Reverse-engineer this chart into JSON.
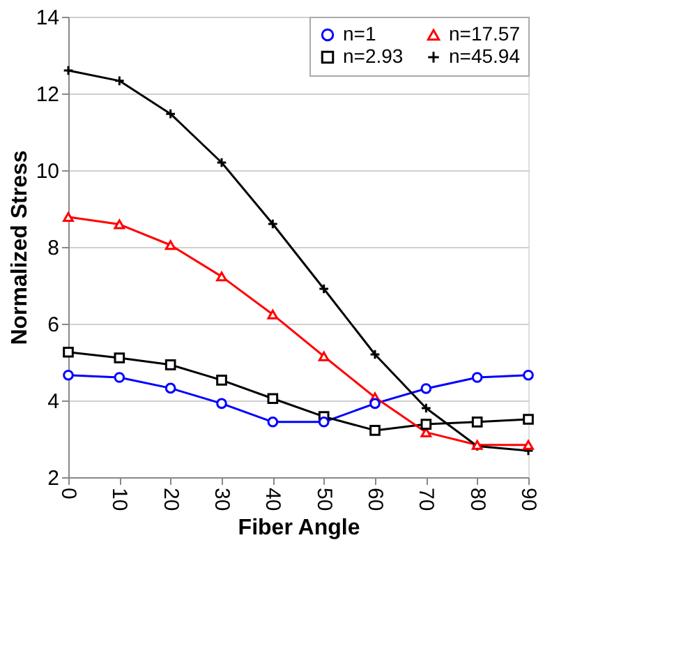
{
  "chart_data": {
    "type": "line",
    "xlabel": "Fiber Angle",
    "ylabel": "Normalized Stress",
    "x": [
      0,
      10,
      20,
      30,
      40,
      50,
      60,
      70,
      80,
      90
    ],
    "series": [
      {
        "name": "n=1",
        "color": "#0000ff",
        "marker": "circle",
        "values": [
          4.66,
          4.6,
          4.32,
          3.92,
          3.44,
          3.44,
          3.92,
          4.31,
          4.6,
          4.66
        ]
      },
      {
        "name": "n=2.93",
        "color": "#000000",
        "marker": "square",
        "values": [
          5.26,
          5.11,
          4.93,
          4.53,
          4.05,
          3.58,
          3.22,
          3.38,
          3.44,
          3.51
        ]
      },
      {
        "name": "n=17.57",
        "color": "#ff0000",
        "marker": "triangle",
        "values": [
          8.78,
          8.59,
          8.05,
          7.23,
          6.24,
          5.15,
          4.08,
          3.17,
          2.84,
          2.84
        ]
      },
      {
        "name": "n=45.94",
        "color": "#000000",
        "marker": "cross",
        "values": [
          12.6,
          12.33,
          11.47,
          10.2,
          8.6,
          6.91,
          5.2,
          3.8,
          2.81,
          2.69
        ]
      }
    ],
    "xlim": [
      0,
      90
    ],
    "xticks": [
      0,
      10,
      20,
      30,
      40,
      50,
      60,
      70,
      80,
      90
    ],
    "ylim": [
      2,
      14
    ],
    "yticks": [
      2,
      4,
      6,
      8,
      10,
      12,
      14
    ],
    "grid": "y",
    "legend": "top right",
    "line_style": "solid"
  }
}
